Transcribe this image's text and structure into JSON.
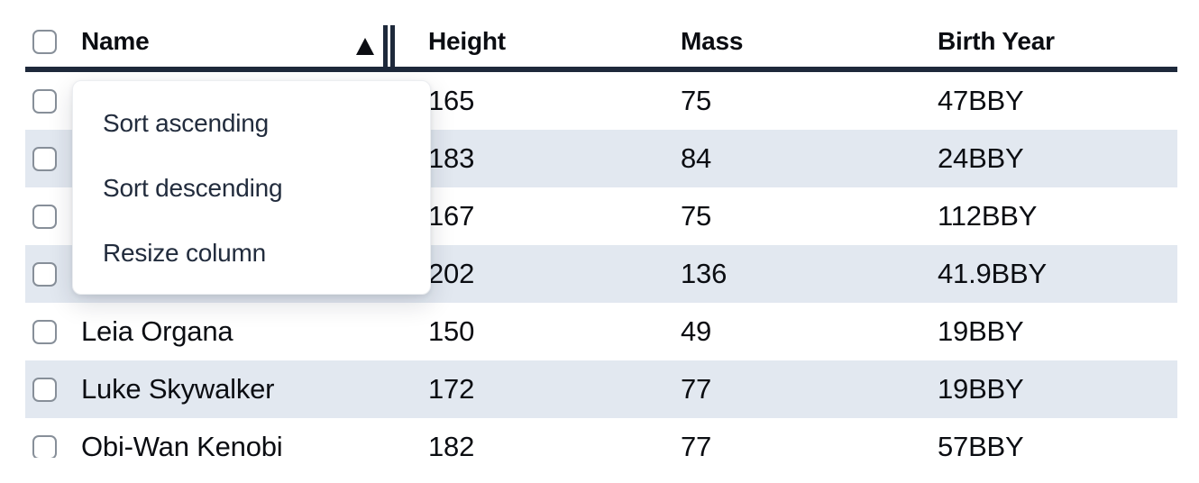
{
  "table": {
    "columns": [
      {
        "id": "select",
        "label": ""
      },
      {
        "id": "name",
        "label": "Name",
        "sorted": "ascending"
      },
      {
        "id": "height",
        "label": "Height"
      },
      {
        "id": "mass",
        "label": "Mass"
      },
      {
        "id": "birth_year",
        "label": "Birth Year"
      }
    ],
    "rows": [
      {
        "name": "",
        "height": "165",
        "mass": "75",
        "birth_year": "47BBY"
      },
      {
        "name": "",
        "height": "183",
        "mass": "84",
        "birth_year": "24BBY"
      },
      {
        "name": "",
        "height": "167",
        "mass": "75",
        "birth_year": "112BBY"
      },
      {
        "name": "",
        "height": "202",
        "mass": "136",
        "birth_year": "41.9BBY"
      },
      {
        "name": "Leia Organa",
        "height": "150",
        "mass": "49",
        "birth_year": "19BBY"
      },
      {
        "name": "Luke Skywalker",
        "height": "172",
        "mass": "77",
        "birth_year": "19BBY"
      },
      {
        "name": "Obi-Wan Kenobi",
        "height": "182",
        "mass": "77",
        "birth_year": "57BBY"
      }
    ]
  },
  "menu": {
    "items": [
      {
        "label": "Sort ascending"
      },
      {
        "label": "Sort descending"
      },
      {
        "label": "Resize column"
      }
    ]
  },
  "icons": {
    "sort_indicator": "ascending-triangle",
    "resize_handle": "double-vertical-bars"
  },
  "colors": {
    "stripe": "#e2e8f0",
    "header_border": "#1e293b",
    "text": "#0b0d12",
    "menu_text": "#222c3d",
    "checkbox_border": "#878f99"
  }
}
